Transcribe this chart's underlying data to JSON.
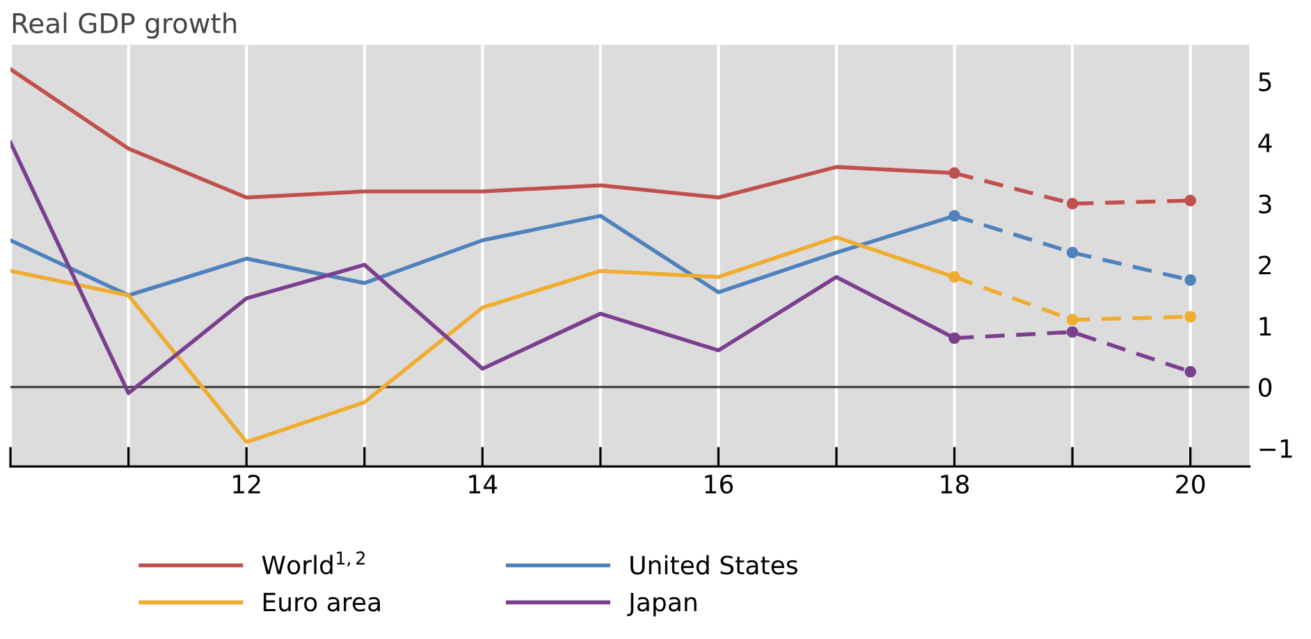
{
  "chart_data": {
    "type": "line",
    "title": "Real GDP growth",
    "x": [
      2010,
      2011,
      2012,
      2013,
      2014,
      2015,
      2016,
      2017,
      2018
    ],
    "series": [
      {
        "name": "World$^{1,2}$",
        "color": "#c0504d",
        "values": [
          5.2,
          3.9,
          3.1,
          3.2,
          3.2,
          3.3,
          3.1,
          3.6,
          3.5
        ]
      },
      {
        "name": "United States",
        "color": "#4f81bd",
        "values": [
          2.4,
          1.5,
          2.1,
          1.7,
          2.4,
          2.8,
          1.55,
          2.2,
          2.8
        ]
      },
      {
        "name": "Euro area",
        "color": "#f0ac2e",
        "values": [
          1.9,
          1.5,
          -0.9,
          -0.25,
          1.3,
          1.9,
          1.8,
          2.45,
          1.8
        ]
      },
      {
        "name": "Japan",
        "color": "#7b3f8f",
        "values": [
          4.0,
          -0.1,
          1.45,
          2.0,
          0.3,
          1.2,
          0.6,
          1.8,
          0.8
        ]
      },
      {
        "color": "#c0504d",
        "x": [
          2018,
          2019,
          2020
        ],
        "values": [
          3.5,
          3.0,
          3.05
        ],
        "line_style": "dashed",
        "marker": "circle"
      },
      {
        "color": "#4f81bd",
        "x": [
          2018,
          2019,
          2020
        ],
        "values": [
          2.8,
          2.2,
          1.75
        ],
        "line_style": "dashed",
        "marker": "circle"
      },
      {
        "color": "#f0ac2e",
        "x": [
          2018,
          2019,
          2020
        ],
        "values": [
          1.8,
          1.1,
          1.15
        ],
        "line_style": "dashed",
        "marker": "circle"
      },
      {
        "color": "#7b3f8f",
        "x": [
          2018,
          2019,
          2020
        ],
        "values": [
          0.8,
          0.9,
          0.25
        ],
        "line_style": "dashed",
        "marker": "circle"
      }
    ],
    "xlim": [
      2010,
      2020.5
    ],
    "xticks": [
      {
        "value": 2010,
        "label": null
      },
      {
        "value": 2011,
        "label": null
      },
      {
        "value": 2012,
        "label": "12"
      },
      {
        "value": 2013,
        "label": null
      },
      {
        "value": 2014,
        "label": "14"
      },
      {
        "value": 2015,
        "label": null
      },
      {
        "value": 2016,
        "label": "16"
      },
      {
        "value": 2017,
        "label": null
      },
      {
        "value": 2018,
        "label": "18"
      },
      {
        "value": 2019,
        "label": null
      },
      {
        "value": 2020,
        "label": "20"
      }
    ],
    "ylim": [
      -1.3,
      5.6
    ],
    "yticks": [
      {
        "value": -1,
        "label": "−1"
      },
      0,
      1,
      2,
      3,
      4,
      5
    ],
    "ref_lines": [
      {
        "axis": "y",
        "value": 0,
        "color": "#333333"
      }
    ],
    "grid": "x",
    "legend": "bottom",
    "line_style": "solid",
    "marker": "none"
  }
}
